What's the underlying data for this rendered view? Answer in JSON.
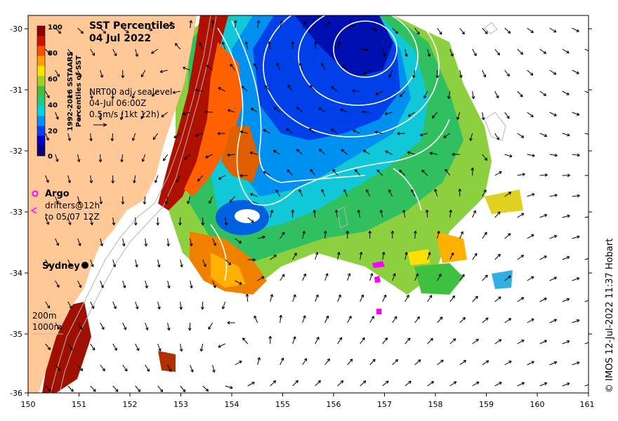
{
  "title": {
    "line1": "SST Percentiles",
    "line2": "04 Jul 2022"
  },
  "colorbar": {
    "label_line1": "1992-2016 SSTAARS",
    "label_line2": "Percentiles of SST",
    "ticks": [
      "100",
      "80",
      "60",
      "40",
      "20",
      "0"
    ],
    "colors": [
      "#00007f",
      "#0000c8",
      "#0040ff",
      "#0090ff",
      "#00d0e8",
      "#20c880",
      "#40c040",
      "#a0d020",
      "#ffe000",
      "#ffa000",
      "#ff5000",
      "#d01000",
      "#900000"
    ]
  },
  "current_info": {
    "line1": "NRT00 adj. sealevel",
    "line2": "04-Jul 06:00Z",
    "line3": "0.5m/s (1kt 12h)"
  },
  "legend": {
    "argo_label": "Argo",
    "argo_color": "#ff00ff",
    "drifters_line1": "drifters@12h",
    "drifters_line2": "to 05/07 12Z",
    "depth_200": "200m",
    "depth_1000": "1000m"
  },
  "place": {
    "sydney": "Sydney"
  },
  "axes": {
    "lon_ticks": [
      "150",
      "151",
      "152",
      "153",
      "154",
      "155",
      "156",
      "157",
      "158",
      "159",
      "160",
      "161"
    ],
    "lat_ticks": [
      "-30",
      "-31",
      "-32",
      "-33",
      "-34",
      "-35",
      "-36"
    ]
  },
  "credit": "© IMOS 12-Jul-2022 11:37 Hobart",
  "colors": {
    "land": "#ffc896",
    "ocean_nodata": "#ffffff"
  }
}
